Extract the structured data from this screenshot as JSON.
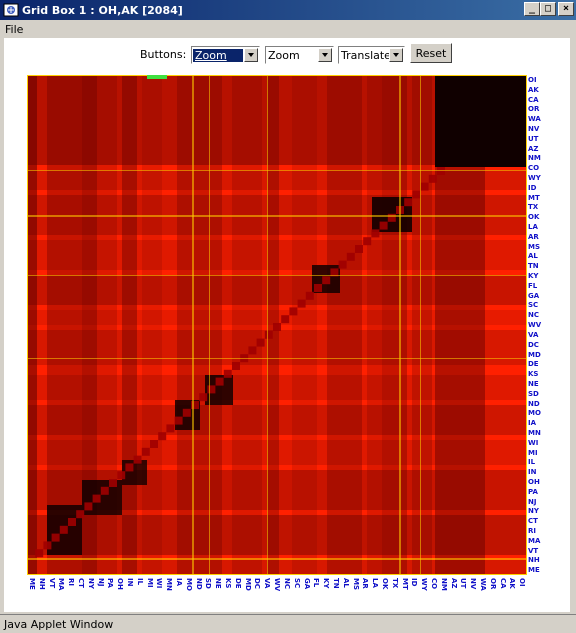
{
  "window": {
    "title": "Grid Box 1 : OH,AK [2084]",
    "controls": [
      "_",
      "□",
      "×"
    ]
  },
  "menu": {
    "items": [
      "File"
    ]
  },
  "toolbar": {
    "label": "Buttons:",
    "dropdown1": "Zoom",
    "dropdown2": "Zoom",
    "dropdown3": "Translate",
    "reset_label": "Reset"
  },
  "grid": {
    "labels": [
      "OI",
      "AK",
      "CA",
      "OR",
      "WA",
      "NV",
      "UT",
      "AZ",
      "NM",
      "CO",
      "WY",
      "ID",
      "MT",
      "TX",
      "OK",
      "LA",
      "AR",
      "MS",
      "AL",
      "TN",
      "KY",
      "FL",
      "GA",
      "SC",
      "NC",
      "WV",
      "VA",
      "DC",
      "MD",
      "DE",
      "KS",
      "NE",
      "SD",
      "ND",
      "MO",
      "IA",
      "MN",
      "WI",
      "MI",
      "IL",
      "IN",
      "OH",
      "PA",
      "NJ",
      "NY",
      "CT",
      "RI",
      "MA",
      "VT",
      "NH",
      "ME"
    ],
    "col_labels": [
      "ME",
      "NH",
      "VT",
      "MA",
      "RI",
      "CT",
      "NY",
      "NJ",
      "PA",
      "OH",
      "IN",
      "IL",
      "MI",
      "WI",
      "MN",
      "IA",
      "MO",
      "ND",
      "SD",
      "NE",
      "KS",
      "DE",
      "MD",
      "DC",
      "VA",
      "WV",
      "NC",
      "SC",
      "GA",
      "FL",
      "KY",
      "TN",
      "AL",
      "MS",
      "AR",
      "LA",
      "OK",
      "TX",
      "MT",
      "ID",
      "WY",
      "CO",
      "NM",
      "AZ",
      "UT",
      "NV",
      "WA",
      "OR",
      "CA",
      "AK",
      "OI"
    ],
    "colors": {
      "bright": "#ff2000",
      "mid": "#e01000",
      "dark": "#a00000",
      "darkest": "#100000",
      "highlight": "#ffd000",
      "selection": "#40e040"
    }
  },
  "status": {
    "text": "Java Applet Window"
  }
}
